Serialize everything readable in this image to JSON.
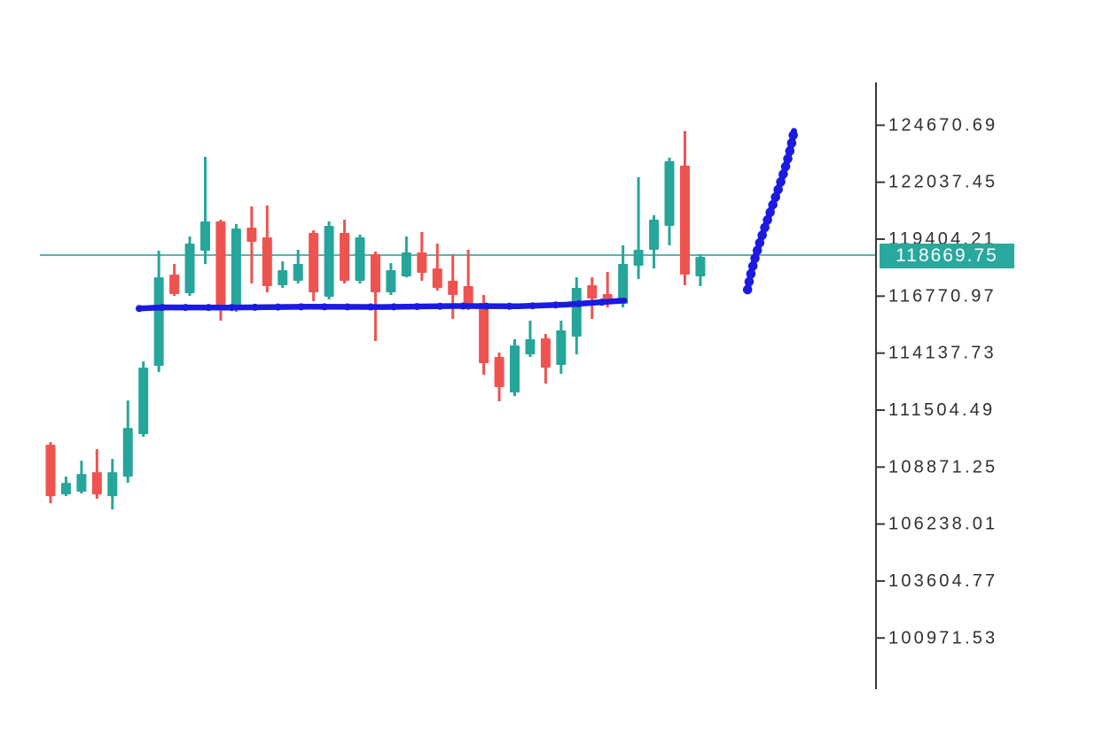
{
  "chart_data": {
    "type": "candlestick",
    "title": "",
    "xlabel": "",
    "ylabel": "",
    "grid": false,
    "y_axis": {
      "position": "right",
      "tick_labels": [
        "124670.69",
        "122037.45",
        "119404.21",
        "116770.97",
        "114137.73",
        "111504.49",
        "108871.25",
        "106238.01",
        "103604.77",
        "100971.53"
      ],
      "ylim": [
        98730,
        126570
      ]
    },
    "current_price": {
      "value": "118669.75",
      "price": 118669.75
    },
    "candles": [
      {
        "o": 109903.81,
        "h": 110026.66,
        "l": 107201.11,
        "c": 107528.71
      },
      {
        "o": 107610.61,
        "h": 108429.61,
        "l": 107528.71,
        "c": 108142.96
      },
      {
        "o": 107733.46,
        "h": 109166.71,
        "l": 107651.56,
        "c": 108552.46
      },
      {
        "o": 108634.36,
        "h": 109699.06,
        "l": 107405.86,
        "c": 107610.61
      },
      {
        "o": 107528.71,
        "h": 109248.61,
        "l": 106914.46,
        "c": 108634.36
      },
      {
        "o": 108429.61,
        "h": 111951.31,
        "l": 108142.96,
        "c": 110681.86
      },
      {
        "o": 110395.21,
        "h": 113753.11,
        "l": 110272.36,
        "c": 113466.46
      },
      {
        "o": 113548.36,
        "h": 118871.86,
        "l": 113261.71,
        "c": 117643.36
      },
      {
        "o": 117766.21,
        "h": 118257.61,
        "l": 116783.41,
        "c": 116865.31
      },
      {
        "o": 116906.26,
        "h": 119527.06,
        "l": 116783.41,
        "c": 119199.46
      },
      {
        "o": 118871.86,
        "h": 123212.56,
        "l": 118257.61,
        "c": 120223.21
      },
      {
        "o": 120223.21,
        "h": 120305.11,
        "l": 115636.81,
        "c": 116251.06
      },
      {
        "o": 116210.11,
        "h": 120100.36,
        "l": 116046.31,
        "c": 119895.61
      },
      {
        "o": 119936.56,
        "h": 120919.36,
        "l": 117356.71,
        "c": 119281.36
      },
      {
        "o": 119486.11,
        "h": 120960.31,
        "l": 116947.21,
        "c": 117233.86
      },
      {
        "o": 117274.81,
        "h": 118380.46,
        "l": 117151.96,
        "c": 117970.96
      },
      {
        "o": 117479.56,
        "h": 118912.81,
        "l": 117356.71,
        "c": 118257.61
      },
      {
        "o": 119690.86,
        "h": 119813.71,
        "l": 116537.71,
        "c": 116947.21
      },
      {
        "o": 116742.46,
        "h": 120223.21,
        "l": 116619.61,
        "c": 120018.46
      },
      {
        "o": 119690.86,
        "h": 120305.11,
        "l": 117356.71,
        "c": 117479.56
      },
      {
        "o": 117479.56,
        "h": 119608.96,
        "l": 117356.71,
        "c": 119486.11
      },
      {
        "o": 118708.06,
        "h": 118830.91,
        "l": 114694.96,
        "c": 116947.21
      },
      {
        "o": 116947.21,
        "h": 118298.56,
        "l": 116824.36,
        "c": 117970.96
      },
      {
        "o": 117684.31,
        "h": 119527.06,
        "l": 117643.36,
        "c": 118789.96
      },
      {
        "o": 118789.96,
        "h": 119731.81,
        "l": 117479.56,
        "c": 117848.11
      },
      {
        "o": 118052.86,
        "h": 119199.46,
        "l": 117029.11,
        "c": 117151.96
      },
      {
        "o": 117479.56,
        "h": 118708.06,
        "l": 115718.71,
        "c": 116824.36
      },
      {
        "o": 117233.86,
        "h": 118912.81,
        "l": 116128.21,
        "c": 116332.96
      },
      {
        "o": 116455.81,
        "h": 116824.36,
        "l": 113138.86,
        "c": 113671.21
      },
      {
        "o": 113957.86,
        "h": 114162.61,
        "l": 111910.36,
        "c": 112565.56
      },
      {
        "o": 112319.86,
        "h": 114776.86,
        "l": 112156.06,
        "c": 114490.21
      },
      {
        "o": 114080.71,
        "h": 115636.81,
        "l": 113957.86,
        "c": 114776.86
      },
      {
        "o": 114817.81,
        "h": 115022.56,
        "l": 112729.36,
        "c": 113466.46
      },
      {
        "o": 113589.31,
        "h": 115636.81,
        "l": 113179.81,
        "c": 115186.36
      },
      {
        "o": 114899.71,
        "h": 117643.36,
        "l": 114080.71,
        "c": 117151.96
      },
      {
        "o": 117274.81,
        "h": 117643.36,
        "l": 115718.71,
        "c": 116660.56
      },
      {
        "o": 116865.31,
        "h": 117889.06,
        "l": 116251.06,
        "c": 116537.71
      },
      {
        "o": 116414.86,
        "h": 119117.56,
        "l": 116251.06,
        "c": 118257.61
      },
      {
        "o": 118175.71,
        "h": 122270.71,
        "l": 117561.46,
        "c": 118912.81
      },
      {
        "o": 118912.81,
        "h": 120509.86,
        "l": 118052.86,
        "c": 120305.11
      },
      {
        "o": 120018.46,
        "h": 123171.61,
        "l": 119117.56,
        "c": 123007.81
      },
      {
        "o": 122803.06,
        "h": 124400.11,
        "l": 117274.81,
        "c": 117766.21
      },
      {
        "o": 117684.31,
        "h": 118708.06,
        "l": 117233.86,
        "c": 118585.21
      }
    ],
    "drawings": {
      "support_line": {
        "shape": "hand-drawn-horizontal",
        "price": 116290,
        "from_candle": 5.73,
        "to_candle": 37.1,
        "color": "#1a1ae0"
      },
      "trend_arrow": {
        "shape": "hand-drawn-diagonal",
        "from": {
          "candle": 45.05,
          "price": 117070
        },
        "to": {
          "candle": 48.05,
          "price": 124400
        },
        "color": "#1a1ae0"
      }
    },
    "colors": {
      "up": "#26a69a",
      "down": "#ef5350",
      "price_line": "#45b0a5",
      "price_tag_bg": "#29a89e",
      "price_tag_text": "#ffffff",
      "axis": "#3a3a3a",
      "label": "#2f2f2f",
      "background": "#ffffff"
    }
  }
}
